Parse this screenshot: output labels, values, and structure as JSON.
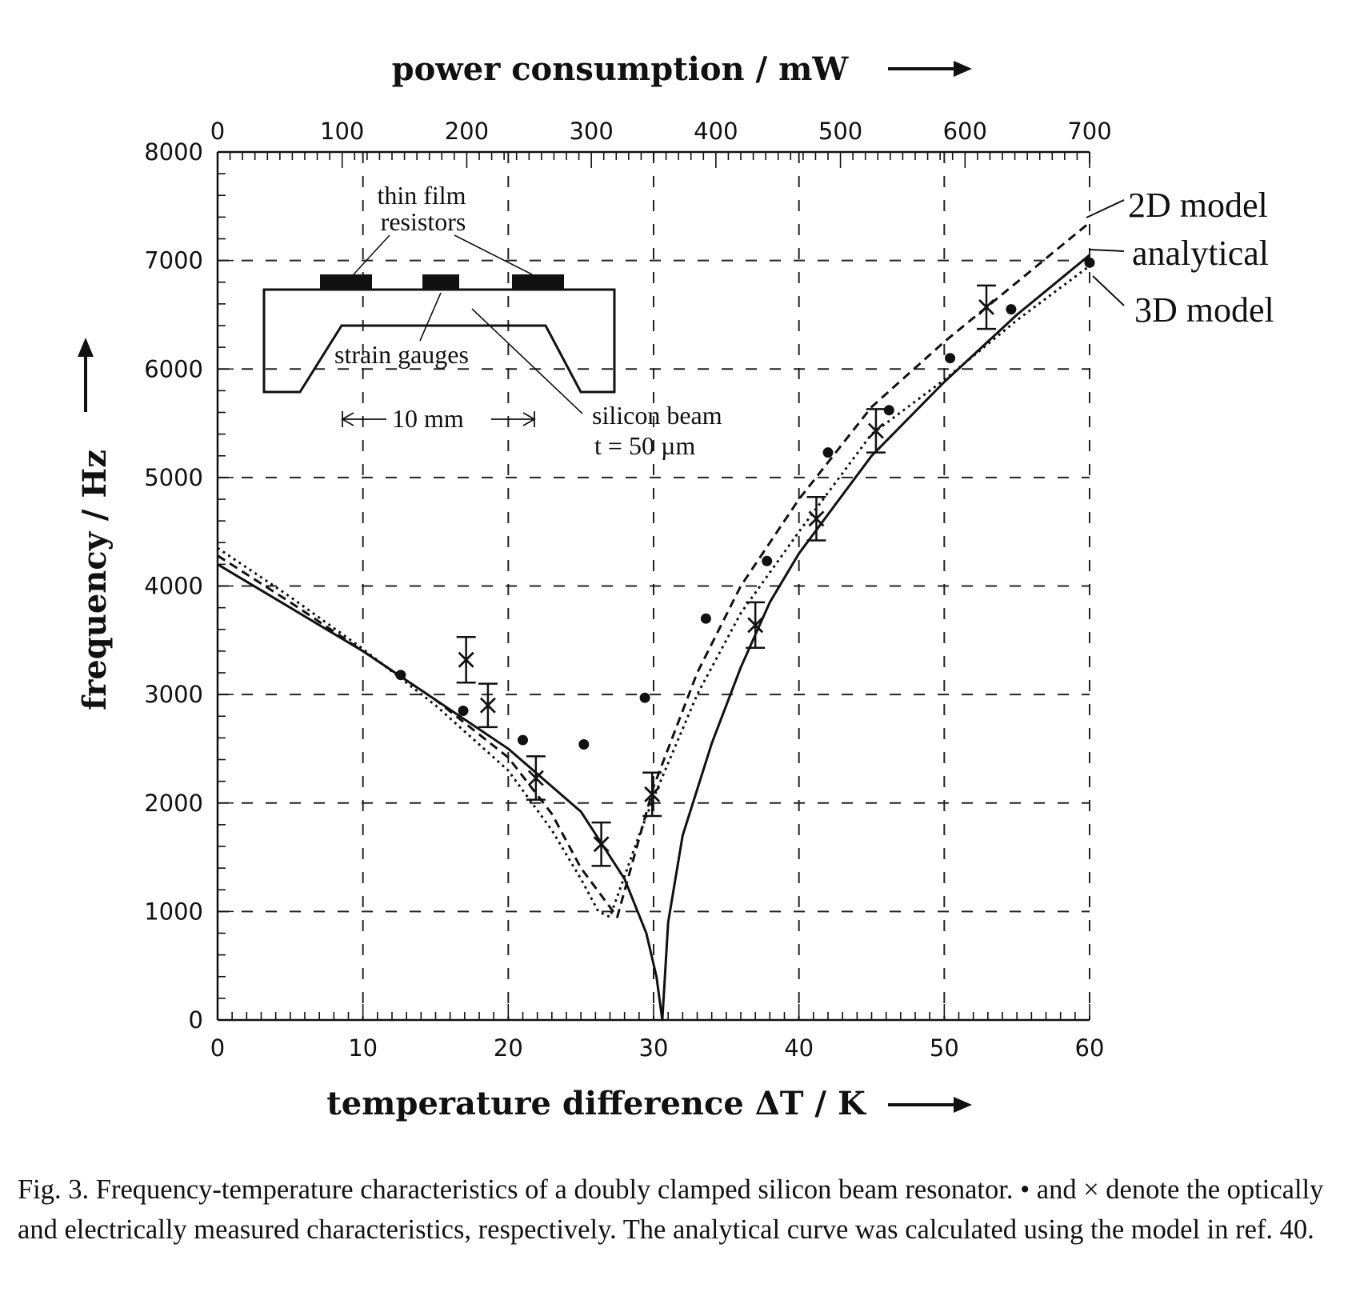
{
  "chart_data": {
    "type": "scatter",
    "title": "",
    "xlabel": "temperature difference  ΔT / K",
    "x2label": "power consumption / mW",
    "ylabel": "frequency / Hz",
    "xlim": [
      0,
      60
    ],
    "x2lim": [
      0,
      700
    ],
    "ylim": [
      0,
      8000
    ],
    "xticks": [
      0,
      10,
      20,
      30,
      40,
      50,
      60
    ],
    "x2ticks": [
      0,
      100,
      200,
      300,
      400,
      500,
      600,
      700
    ],
    "yticks": [
      0,
      1000,
      2000,
      3000,
      4000,
      5000,
      6000,
      7000,
      8000
    ],
    "grid": "dashed",
    "series": [
      {
        "name": "analytical",
        "style": "solid",
        "points": [
          [
            0,
            4200
          ],
          [
            5,
            3800
          ],
          [
            10,
            3400
          ],
          [
            15,
            2950
          ],
          [
            20,
            2500
          ],
          [
            25,
            1920
          ],
          [
            28,
            1300
          ],
          [
            29.5,
            800
          ],
          [
            30.2,
            400
          ],
          [
            30.6,
            0
          ],
          [
            31,
            900
          ],
          [
            32,
            1700
          ],
          [
            34,
            2550
          ],
          [
            36,
            3250
          ],
          [
            38,
            3850
          ],
          [
            40,
            4300
          ],
          [
            45,
            5200
          ],
          [
            50,
            5880
          ],
          [
            55,
            6500
          ],
          [
            60,
            7050
          ]
        ]
      },
      {
        "name": "2D model",
        "style": "dashed",
        "points": [
          [
            0,
            4280
          ],
          [
            5,
            3850
          ],
          [
            10,
            3400
          ],
          [
            15,
            2950
          ],
          [
            20,
            2420
          ],
          [
            23,
            1900
          ],
          [
            25,
            1400
          ],
          [
            27.5,
            950
          ],
          [
            30,
            2150
          ],
          [
            33,
            3200
          ],
          [
            36,
            4000
          ],
          [
            40,
            4800
          ],
          [
            45,
            5650
          ],
          [
            50,
            6250
          ],
          [
            55,
            6800
          ],
          [
            60,
            7350
          ]
        ]
      },
      {
        "name": "3D model",
        "style": "dotted",
        "points": [
          [
            0,
            4350
          ],
          [
            5,
            3900
          ],
          [
            10,
            3420
          ],
          [
            15,
            2900
          ],
          [
            20,
            2300
          ],
          [
            23,
            1750
          ],
          [
            25,
            1300
          ],
          [
            26.2,
            1000
          ],
          [
            27,
            950
          ],
          [
            29,
            1700
          ],
          [
            30,
            2050
          ],
          [
            33,
            3000
          ],
          [
            36,
            3750
          ],
          [
            40,
            4500
          ],
          [
            45,
            5400
          ],
          [
            50,
            5900
          ],
          [
            55,
            6450
          ],
          [
            60,
            6950
          ]
        ]
      },
      {
        "name": "•",
        "marker": "dot",
        "points": [
          [
            12.6,
            3180
          ],
          [
            16.9,
            2850
          ],
          [
            21,
            2580
          ],
          [
            25.2,
            2540
          ],
          [
            29.4,
            2970
          ],
          [
            33.6,
            3700
          ],
          [
            37.8,
            4230
          ],
          [
            42,
            5230
          ],
          [
            46.2,
            5620
          ],
          [
            50.4,
            6100
          ],
          [
            54.6,
            6550
          ],
          [
            60,
            6980
          ]
        ]
      },
      {
        "name": "×",
        "marker": "cross",
        "points": [
          [
            17.1,
            3320,
            210
          ],
          [
            18.6,
            2900,
            200
          ],
          [
            21.9,
            2230,
            200
          ],
          [
            26.4,
            1620,
            200
          ],
          [
            29.9,
            2080,
            200
          ],
          [
            37,
            3640,
            210
          ],
          [
            41.2,
            4620,
            200
          ],
          [
            45.3,
            5430,
            200
          ],
          [
            52.9,
            6570,
            200
          ]
        ]
      }
    ],
    "legend": [
      "2D model",
      "analytical",
      "3D model"
    ],
    "legend_placement": "right-top",
    "inset": {
      "labels": [
        "thin film",
        "resistors",
        "strain gauges",
        "10 mm",
        "silicon beam",
        "t = 50 µm"
      ]
    }
  },
  "caption": {
    "text": "Fig. 3.    Frequency-temperature characteristics of a doubly clamped silicon beam resonator.  • and × denote the optically and electrically measured characteristics, respectively.  The analytical curve was calculated using the model in ref. 40."
  }
}
